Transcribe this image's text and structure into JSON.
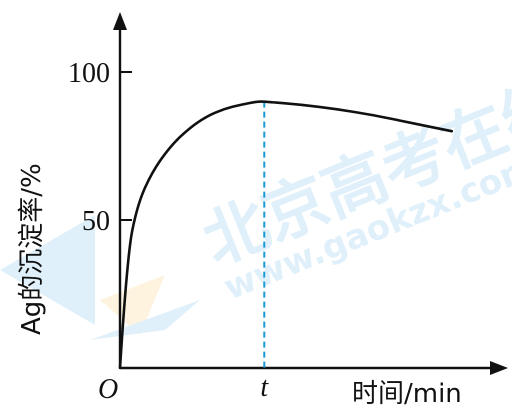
{
  "chart_data": {
    "type": "line",
    "xlabel": "时间/min",
    "ylabel": "Ag的沉淀率/%",
    "origin_label": "O",
    "x_marker_label": "t",
    "yticks": [
      50,
      100
    ],
    "ylim": [
      0,
      100
    ],
    "series": [
      {
        "x": [
          0,
          0.05,
          0.12,
          0.22,
          0.35,
          0.48,
          0.6,
          0.72,
          0.84,
          0.95,
          1.0,
          1.25,
          1.5,
          1.75,
          2.0,
          2.3
        ],
        "values": [
          0,
          38,
          55,
          66,
          75,
          81,
          85,
          87.5,
          89,
          90,
          90,
          89,
          87.5,
          85.5,
          83,
          80
        ]
      }
    ],
    "x_marker": 1.0,
    "xlim": [
      0,
      2.62
    ],
    "watermark": {
      "text_cn": "北京高考在线",
      "text_en": "www.gaokzx.com"
    },
    "colors": {
      "curve": "#111111",
      "marker": "#1a9ad6",
      "watermark": "#4aa8e8",
      "watermark_accent": "#f6b84a"
    }
  }
}
